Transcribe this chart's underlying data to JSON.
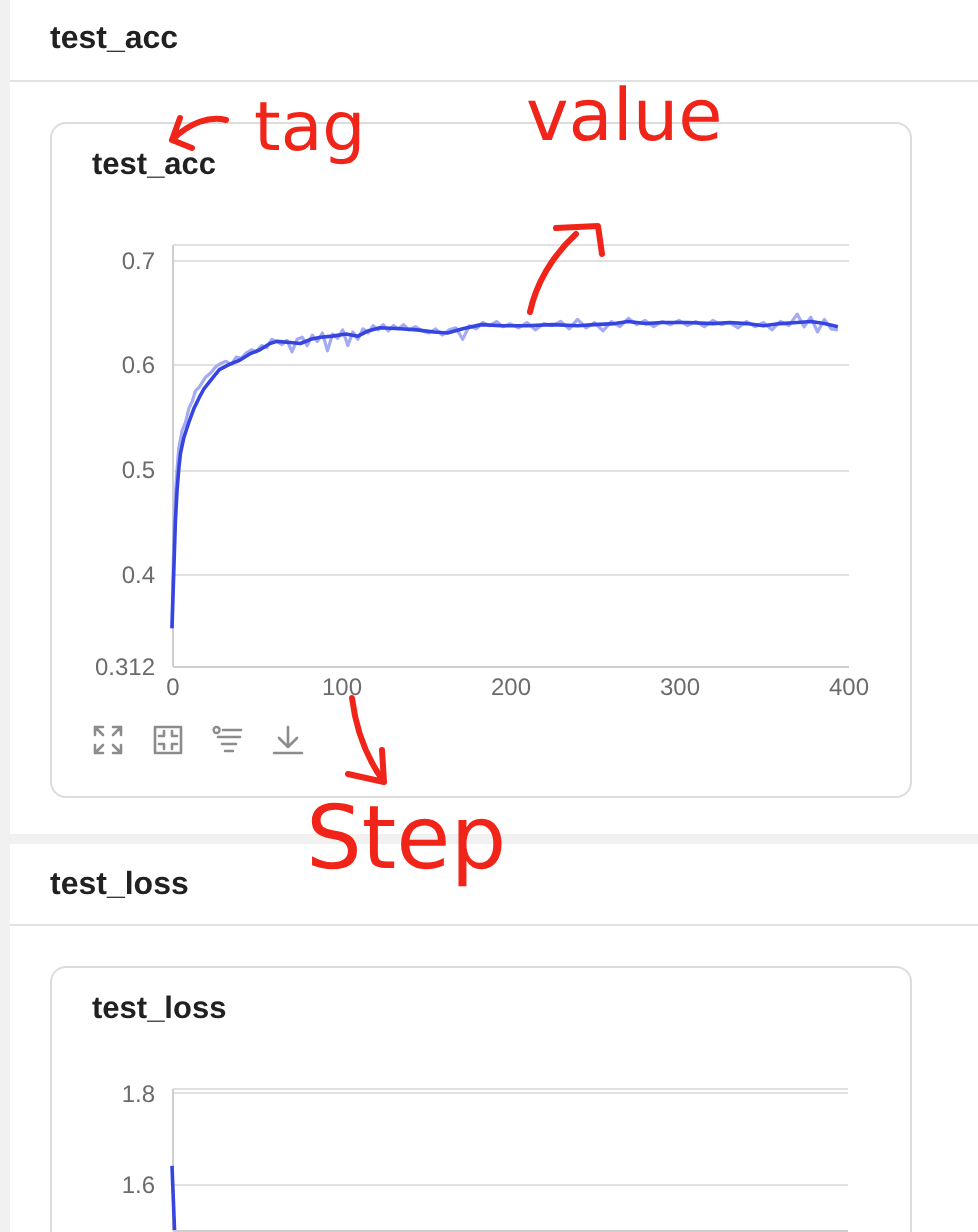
{
  "chart_data": [
    {
      "type": "line",
      "title": "test_acc",
      "annotations": [
        "test_acc",
        "tag",
        "value",
        "Step"
      ],
      "xlim": [
        0,
        400
      ],
      "xticks": [
        0,
        100,
        200,
        300,
        400
      ],
      "ylim": [
        0.312,
        0.715
      ],
      "yticks": [
        0.312,
        0.4,
        0.5,
        0.6,
        0.7,
        {
          "value": 0.715,
          "label": null
        }
      ],
      "grid": "y",
      "series": [
        {
          "color": "#a3abf3",
          "x": [
            0,
            1,
            2,
            3,
            4,
            6,
            8,
            10,
            12,
            14,
            16,
            18,
            20,
            23,
            26,
            29,
            32,
            35,
            38,
            41,
            44,
            47,
            50,
            53,
            56,
            59,
            62,
            65,
            68,
            71,
            74,
            77,
            80,
            83,
            86,
            89,
            92,
            95,
            98,
            101,
            104,
            107,
            110,
            113,
            116,
            119,
            122,
            125,
            128,
            131,
            134,
            137,
            140,
            144,
            148,
            152,
            156,
            160,
            164,
            168,
            172,
            176,
            180,
            184,
            188,
            192,
            196,
            200,
            205,
            210,
            215,
            220,
            225,
            230,
            235,
            240,
            245,
            250,
            255,
            260,
            265,
            270,
            275,
            280,
            285,
            290,
            295,
            300,
            305,
            310,
            315,
            320,
            325,
            330,
            335,
            340,
            345,
            350,
            355,
            360,
            365,
            370,
            374,
            378,
            382,
            386,
            390,
            394
          ],
          "values": [
            0.348,
            0.43,
            0.475,
            0.5,
            0.52,
            0.537,
            0.545,
            0.558,
            0.565,
            0.575,
            0.578,
            0.583,
            0.588,
            0.592,
            0.598,
            0.601,
            0.603,
            0.6,
            0.607,
            0.606,
            0.611,
            0.614,
            0.612,
            0.618,
            0.616,
            0.624,
            0.622,
            0.619,
            0.623,
            0.612,
            0.624,
            0.626,
            0.618,
            0.628,
            0.622,
            0.63,
            0.613,
            0.629,
            0.625,
            0.633,
            0.618,
            0.631,
            0.624,
            0.634,
            0.63,
            0.637,
            0.633,
            0.638,
            0.632,
            0.637,
            0.634,
            0.638,
            0.633,
            0.636,
            0.632,
            0.63,
            0.634,
            0.628,
            0.633,
            0.635,
            0.624,
            0.637,
            0.634,
            0.64,
            0.637,
            0.641,
            0.636,
            0.639,
            0.635,
            0.64,
            0.633,
            0.639,
            0.637,
            0.641,
            0.634,
            0.643,
            0.635,
            0.64,
            0.632,
            0.641,
            0.636,
            0.644,
            0.638,
            0.642,
            0.636,
            0.641,
            0.638,
            0.642,
            0.637,
            0.641,
            0.636,
            0.642,
            0.638,
            0.64,
            0.635,
            0.641,
            0.636,
            0.64,
            0.633,
            0.641,
            0.637,
            0.648,
            0.636,
            0.645,
            0.631,
            0.643,
            0.634,
            0.633
          ]
        },
        {
          "color": "#3745e0",
          "x": [
            0,
            1,
            2,
            3,
            4,
            5,
            7,
            10,
            13,
            16,
            19,
            23,
            28,
            34,
            40,
            46,
            52,
            58,
            62,
            70,
            76,
            82,
            88,
            95,
            103,
            110,
            116,
            123,
            135,
            145,
            155,
            163,
            172,
            183,
            195,
            210,
            225,
            240,
            250,
            262,
            270,
            280,
            290,
            305,
            320,
            330,
            340,
            350,
            360,
            370,
            378,
            386,
            394
          ],
          "values": [
            0.348,
            0.4,
            0.45,
            0.48,
            0.5,
            0.515,
            0.53,
            0.545,
            0.558,
            0.568,
            0.577,
            0.585,
            0.595,
            0.6,
            0.604,
            0.61,
            0.614,
            0.62,
            0.622,
            0.621,
            0.62,
            0.624,
            0.626,
            0.627,
            0.629,
            0.627,
            0.632,
            0.635,
            0.634,
            0.633,
            0.631,
            0.63,
            0.634,
            0.638,
            0.637,
            0.637,
            0.638,
            0.637,
            0.638,
            0.639,
            0.641,
            0.639,
            0.64,
            0.64,
            0.639,
            0.64,
            0.639,
            0.637,
            0.639,
            0.64,
            0.641,
            0.639,
            0.636
          ]
        }
      ]
    },
    {
      "type": "line",
      "title": "test_loss",
      "annotations": [
        "test_loss"
      ],
      "xlim": [
        0,
        400
      ],
      "ylim": [
        1.5,
        1.81
      ],
      "yticks": [
        1.6,
        1.8,
        {
          "value": 1.81,
          "label": null
        }
      ],
      "grid": "y",
      "tick_labels": "y",
      "series": [
        {
          "color": "#3745e0",
          "x": [
            0,
            1.5
          ],
          "values": [
            1.64,
            1.5
          ]
        }
      ]
    }
  ]
}
